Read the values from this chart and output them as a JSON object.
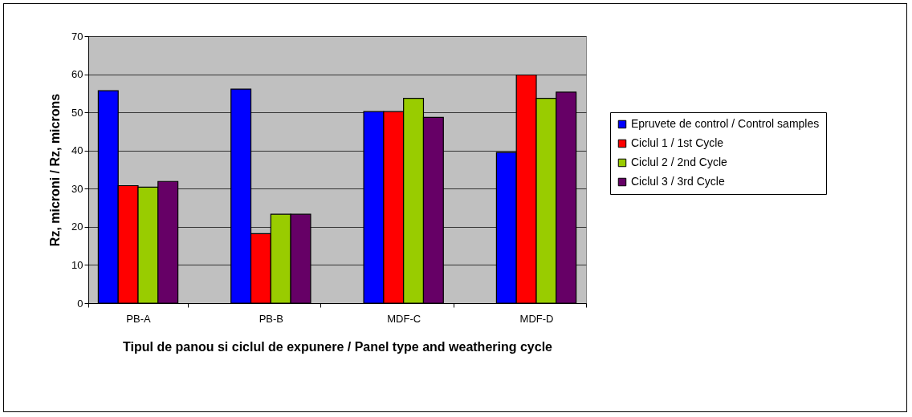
{
  "chart_data": {
    "type": "bar",
    "categories": [
      "PB-A",
      "PB-B",
      "MDF-C",
      "MDF-D"
    ],
    "series": [
      {
        "name": "Epruvete de control / Control samples",
        "color": "#0000ff",
        "values": [
          55.7,
          56.1,
          50.2,
          39.5
        ]
      },
      {
        "name": "Ciclul 1 / 1st Cycle",
        "color": "#ff0000",
        "values": [
          30.8,
          18.2,
          50.2,
          59.8
        ]
      },
      {
        "name": "Ciclul 2 / 2nd Cycle",
        "color": "#99cc00",
        "values": [
          30.4,
          23.3,
          53.7,
          53.7
        ]
      },
      {
        "name": "Ciclul 3 / 3rd Cycle",
        "color": "#660066",
        "values": [
          31.9,
          23.3,
          48.7,
          55.3
        ]
      }
    ],
    "xlabel": "Tipul de panou si ciclul de expunere /\nPanel type and weathering cycle",
    "ylabel": "Rz, microni / Rz, microns",
    "ylim": [
      0,
      70
    ],
    "yticks": [
      0,
      10,
      20,
      30,
      40,
      50,
      60,
      70
    ],
    "grid": "y",
    "legend": "right"
  }
}
